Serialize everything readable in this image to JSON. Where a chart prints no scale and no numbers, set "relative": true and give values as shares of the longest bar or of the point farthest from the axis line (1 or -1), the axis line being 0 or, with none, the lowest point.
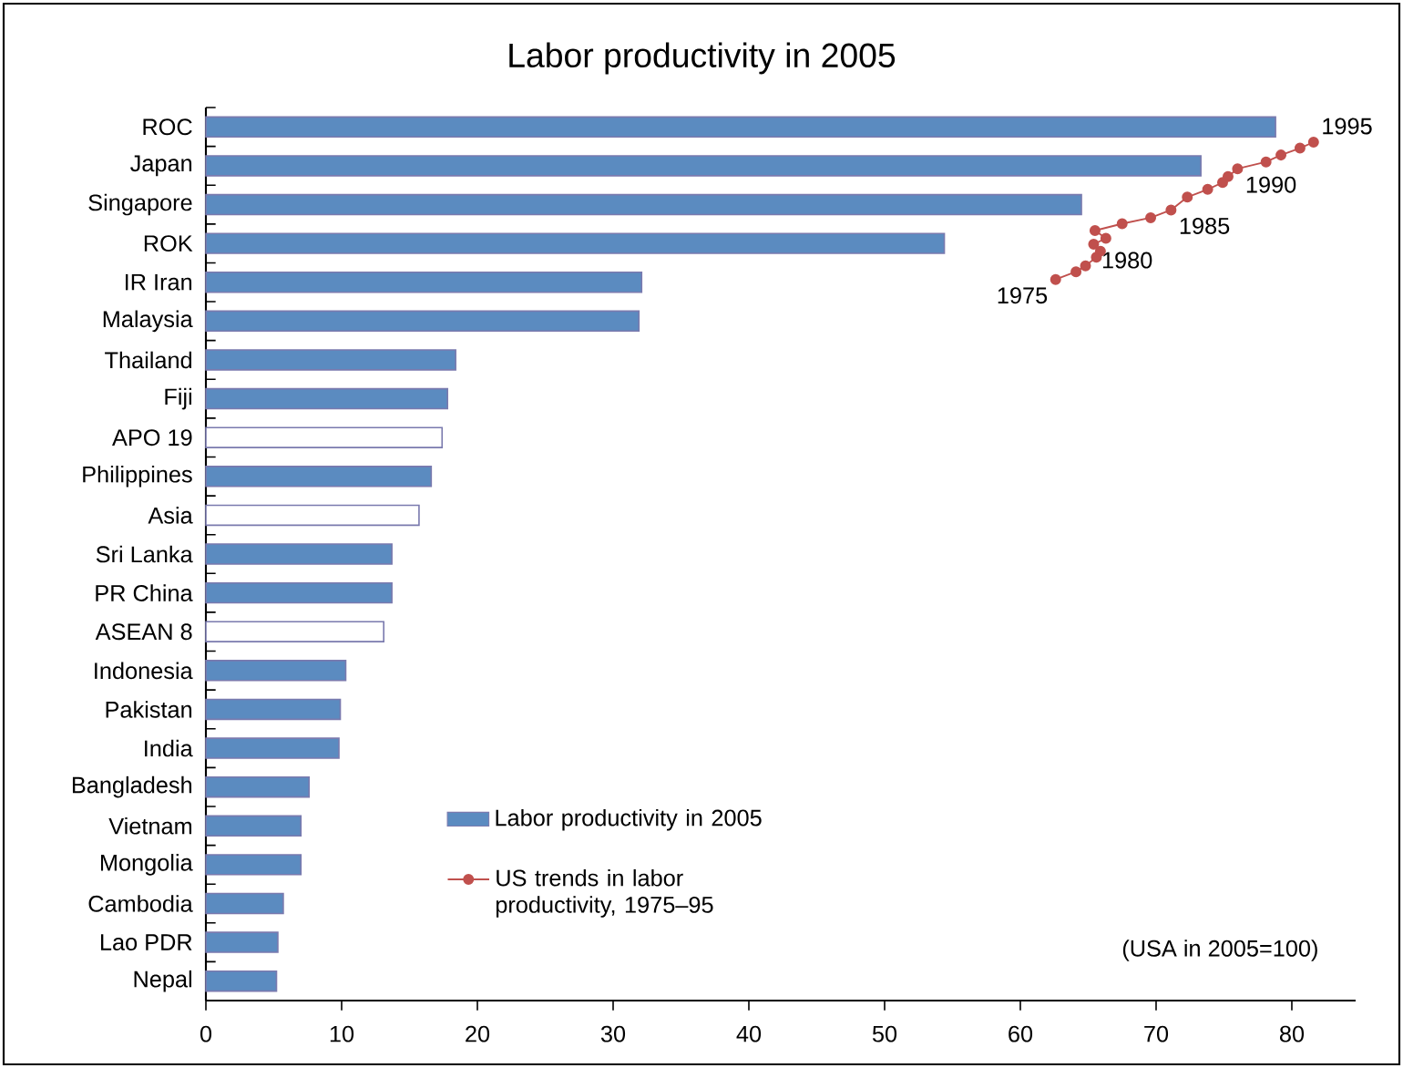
{
  "chart_data": [
    {
      "type": "bar",
      "orientation": "horizontal",
      "title": "Labor productivity in 2005",
      "categories": [
        "ROC",
        "Japan",
        "Singapore",
        "ROK",
        "IR Iran",
        "Malaysia",
        "Thailand",
        "Fiji",
        "APO 19",
        "Philippines",
        "Asia",
        "Sri Lanka",
        "PR China",
        "ASEAN 8",
        "Indonesia",
        "Pakistan",
        "India",
        "Bangladesh",
        "Vietnam",
        "Mongolia",
        "Cambodia",
        "Lao PDR",
        "Nepal"
      ],
      "series": [
        {
          "name": "Labor productivity in 2005",
          "color": "#5b8bc0",
          "colors": [
            "#5b8bc0",
            "#5b8bc0",
            "#5b8bc0",
            "#5b8bc0",
            "#5b8bc0",
            "#5b8bc0",
            "#5b8bc0",
            "#5b8bc0",
            "#ffffff",
            "#5b8bc0",
            "#ffffff",
            "#5b8bc0",
            "#5b8bc0",
            "#ffffff",
            "#5b8bc0",
            "#5b8bc0",
            "#5b8bc0",
            "#5b8bc0",
            "#5b8bc0",
            "#5b8bc0",
            "#5b8bc0",
            "#5b8bc0",
            "#5b8bc0"
          ],
          "values": [
            78.8,
            73.3,
            64.5,
            54.4,
            32.1,
            31.9,
            18.4,
            17.8,
            17.4,
            16.6,
            15.7,
            13.7,
            13.7,
            13.1,
            10.3,
            9.9,
            9.8,
            7.6,
            7.0,
            7.0,
            5.7,
            5.3,
            5.2
          ]
        }
      ],
      "xlim": [
        0,
        84.7
      ],
      "tick_labels": "y",
      "legend": "bottom",
      "annotations": [
        "(USA in 2005=100)"
      ]
    },
    {
      "type": "line",
      "relative": true,
      "xlim": [
        0,
        84.7
      ],
      "xticks": [
        0,
        10,
        20,
        30,
        40,
        50,
        60,
        70,
        80
      ],
      "legend": "bottom",
      "marker": "circle",
      "line_style": "solid",
      "x": [
        62.6,
        64.1,
        64.8,
        65.6,
        65.9,
        65.4,
        66.3,
        65.5,
        67.5,
        69.6,
        71.1,
        72.3,
        73.8,
        74.9,
        75.3,
        76.0,
        78.1,
        79.2,
        80.6,
        81.6
      ],
      "series": [
        {
          "name": "US trends in labor productivity, 1975–95",
          "color": "#c0504d",
          "values": [
            0.84,
            0.849,
            0.856,
            0.866,
            0.873,
            0.881,
            0.888,
            0.897,
            0.905,
            0.912,
            0.921,
            0.936,
            0.945,
            0.953,
            0.96,
            0.969,
            0.977,
            0.985,
            0.993,
            1
          ]
        }
      ],
      "annotations": [
        {
          "text": "1975",
          "x": 62.6,
          "y": 0.84
        },
        {
          "text": "1980",
          "x": 65.4,
          "y": 0.881
        },
        {
          "text": "1985",
          "x": 71.1,
          "y": 0.921
        },
        {
          "text": "1990",
          "x": 76.0,
          "y": 0.969
        },
        {
          "text": "1995",
          "x": 81.6,
          "y": 1
        }
      ]
    }
  ]
}
